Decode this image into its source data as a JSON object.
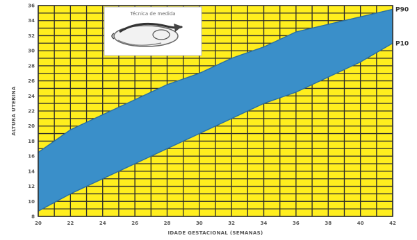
{
  "chart_data": {
    "type": "area",
    "title": "",
    "xlabel": "IDADE GESTACIONAL (SEMANAS)",
    "ylabel": "ALTURA UTERINA",
    "x_ticks": [
      "20",
      "22",
      "24",
      "26",
      "28",
      "30",
      "32",
      "34",
      "36",
      "38",
      "40",
      "42"
    ],
    "x": [
      20,
      22,
      24,
      26,
      28,
      30,
      32,
      34,
      36,
      38,
      40,
      42
    ],
    "ylim": [
      8,
      36
    ],
    "y_ticks": [
      "8",
      "10",
      "12",
      "14",
      "16",
      "18",
      "20",
      "22",
      "24",
      "26",
      "28",
      "30",
      "32",
      "34",
      "36"
    ],
    "grid": true,
    "series": [
      {
        "name": "P90",
        "values": [
          16.5,
          19.5,
          21.5,
          23.5,
          25.5,
          27,
          29,
          30.5,
          32.5,
          33.5,
          34.5,
          35.5
        ]
      },
      {
        "name": "P10",
        "values": [
          8.7,
          11,
          13,
          15,
          17,
          19,
          21,
          23,
          24.5,
          26.5,
          28.5,
          31
        ]
      }
    ],
    "band_labels": [
      {
        "series": "P90",
        "text": "P90"
      },
      {
        "series": "P10",
        "text": "P10"
      }
    ],
    "inset": {
      "caption": "Técnica de medida"
    },
    "colors": {
      "background": "#ffee1e",
      "grid": "#2b2b2b",
      "band": "#3a8fc9",
      "band_edge": "#2a6fa0",
      "inset_bg": "#ffffff"
    }
  }
}
